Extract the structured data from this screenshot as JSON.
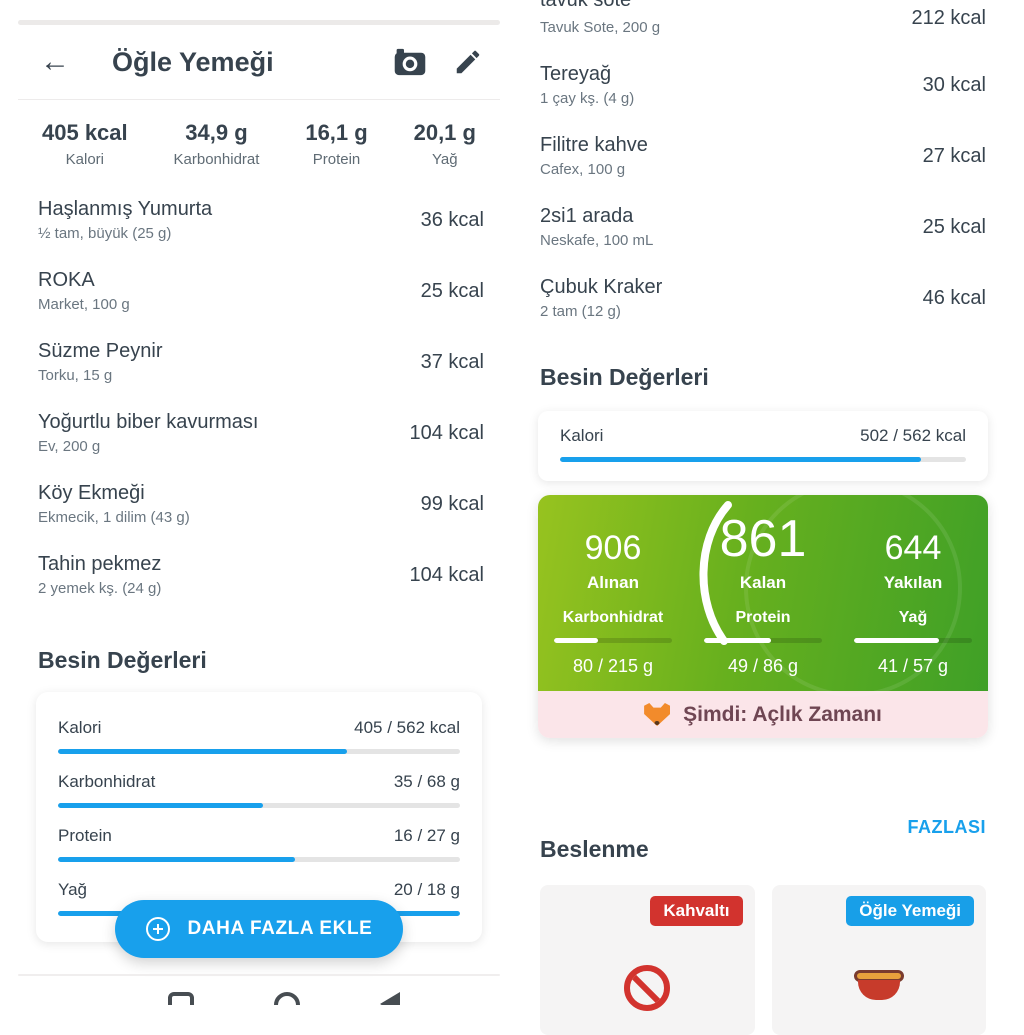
{
  "colors": {
    "accent": "#18A0EC",
    "text_dark": "#37434E",
    "green_start": "#97C31F",
    "green_end": "#3FA027",
    "pink_bg": "#FBE5E9",
    "pink_text": "#6F4653",
    "red_badge": "#D2332E",
    "blue_badge": "#189FE8"
  },
  "left": {
    "header": {
      "title": "Öğle Yemeği"
    },
    "summary": [
      {
        "value": "405 kcal",
        "label": "Kalori"
      },
      {
        "value": "34,9 g",
        "label": "Karbonhidrat"
      },
      {
        "value": "16,1 g",
        "label": "Protein"
      },
      {
        "value": "20,1 g",
        "label": "Yağ"
      }
    ],
    "items": [
      {
        "name": "Haşlanmış Yumurta",
        "detail": "½ tam, büyük (25 g)",
        "kcal": "36 kcal"
      },
      {
        "name": "ROKA",
        "detail": "Market, 100 g",
        "kcal": "25 kcal"
      },
      {
        "name": "Süzme Peynir",
        "detail": "Torku, 15 g",
        "kcal": "37 kcal"
      },
      {
        "name": "Yoğurtlu biber kavurması",
        "detail": "Ev, 200 g",
        "kcal": "104 kcal"
      },
      {
        "name": "Köy Ekmeği",
        "detail": "Ekmecik, 1 dilim (43 g)",
        "kcal": "99 kcal"
      },
      {
        "name": "Tahin pekmez",
        "detail": "2 yemek kş. (24 g)",
        "kcal": "104 kcal"
      }
    ],
    "nutrition_title": "Besin Değerleri",
    "bars": [
      {
        "label": "Kalori",
        "value": "405 / 562 kcal",
        "pct": 72
      },
      {
        "label": "Karbonhidrat",
        "value": "35 / 68 g",
        "pct": 51
      },
      {
        "label": "Protein",
        "value": "16 / 27 g",
        "pct": 59
      },
      {
        "label": "Yağ",
        "value": "20 / 18 g",
        "pct": 100
      }
    ],
    "add_button": "DAHA FAZLA EKLE"
  },
  "right": {
    "items": [
      {
        "name": "tavuk sote",
        "detail": "Tavuk Sote, 200 g",
        "kcal": "212 kcal",
        "clipped": true
      },
      {
        "name": "Tereyağ",
        "detail": "1 çay kş. (4 g)",
        "kcal": "30 kcal"
      },
      {
        "name": "Filitre kahve",
        "detail": "Cafex, 100 g",
        "kcal": "27 kcal"
      },
      {
        "name": "2si1 arada",
        "detail": "Neskafe, 100 mL",
        "kcal": "25 kcal"
      },
      {
        "name": "Çubuk Kraker",
        "detail": "2 tam (12 g)",
        "kcal": "46 kcal"
      }
    ],
    "nutrition_title": "Besin Değerleri",
    "kalori_bar": {
      "label": "Kalori",
      "value": "502 / 562 kcal",
      "pct": 89
    },
    "energy": {
      "taken": {
        "value": "906",
        "label": "Alınan"
      },
      "remaining": {
        "value": "861",
        "label": "Kalan"
      },
      "burned": {
        "value": "644",
        "label": "Yakılan"
      },
      "macros": [
        {
          "label": "Karbonhidrat",
          "value": "80 / 215 g",
          "pct": 37
        },
        {
          "label": "Protein",
          "value": "49 / 86 g",
          "pct": 57
        },
        {
          "label": "Yağ",
          "value": "41 / 57 g",
          "pct": 72
        }
      ]
    },
    "status": {
      "text": "Şimdi: Açlık Zamanı"
    },
    "nutrition_section": {
      "title": "Beslenme",
      "more_link": "FAZLASI",
      "cards": [
        {
          "badge": "Kahvaltı",
          "badge_color": "#D2332E",
          "icon": "no-entry-icon"
        },
        {
          "badge": "Öğle Yemeği",
          "badge_color": "#189FE8",
          "icon": "pot-icon"
        }
      ]
    }
  }
}
